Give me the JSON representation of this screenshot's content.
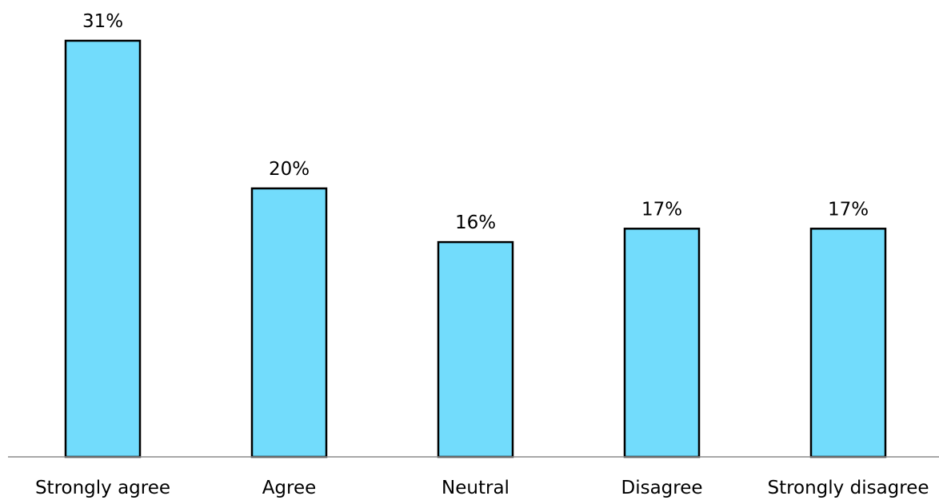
{
  "chart_data": {
    "type": "bar",
    "title": "",
    "xlabel": "",
    "ylabel": "",
    "categories": [
      "Strongly agree",
      "Agree",
      "Neutral",
      "Disagree",
      "Strongly disagree"
    ],
    "values": [
      31,
      20,
      16,
      17,
      17
    ],
    "data_labels": [
      "31%",
      "20%",
      "16%",
      "17%",
      "17%"
    ],
    "ylim": [
      0,
      31
    ],
    "grid": false,
    "legend": "none",
    "colors": {
      "bar_fill": "#72dcfc",
      "bar_stroke": "#000000",
      "axis": "#8c8c8c",
      "text": "#000000"
    }
  }
}
